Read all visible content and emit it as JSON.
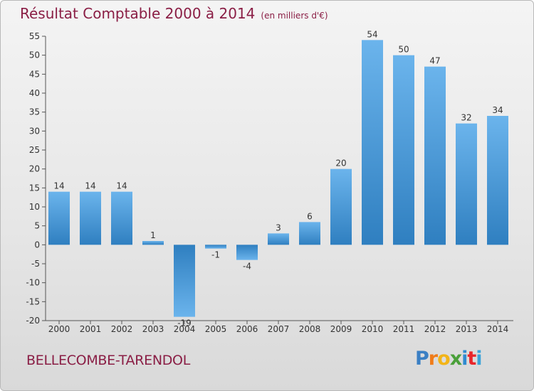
{
  "header": {
    "title": "Résultat Comptable 2000 à 2014",
    "subtitle": "(en milliers d'€)"
  },
  "footer": {
    "commune": "BELLECOMBE-TARENDOL",
    "logo_letters": [
      "P",
      "r",
      "o",
      "x",
      "i",
      "t",
      "i"
    ]
  },
  "colors": {
    "title": "#8a1e45",
    "bar_light": "#6bb4ec",
    "bar_dark": "#2f7fc0",
    "logo": [
      "#3a7fc4",
      "#f07c1a",
      "#f2b418",
      "#4aa03a",
      "#2f8bd0",
      "#e8262b",
      "#3aa3d8"
    ]
  },
  "chart_data": {
    "type": "bar",
    "title": "Résultat Comptable 2000 à 2014",
    "ylabel": "en milliers d'€",
    "xlabel": "",
    "categories": [
      "2000",
      "2001",
      "2002",
      "2003",
      "2004",
      "2005",
      "2006",
      "2007",
      "2008",
      "2009",
      "2010",
      "2011",
      "2012",
      "2013",
      "2014"
    ],
    "values": [
      14,
      14,
      14,
      1,
      -19,
      -1,
      -4,
      3,
      6,
      20,
      54,
      50,
      47,
      32,
      34
    ],
    "labels": [
      "14",
      "14",
      "14",
      "1",
      "-19",
      "-1",
      "-4",
      "3",
      "6",
      "20",
      "54",
      "50",
      "47",
      "32",
      "34"
    ],
    "ylim": [
      -20,
      55
    ],
    "yticks": [
      "-20",
      "-15",
      "-10",
      "-5",
      "0",
      "5",
      "10",
      "15",
      "20",
      "25",
      "30",
      "35",
      "40",
      "45",
      "50",
      "55"
    ],
    "grid": false
  }
}
